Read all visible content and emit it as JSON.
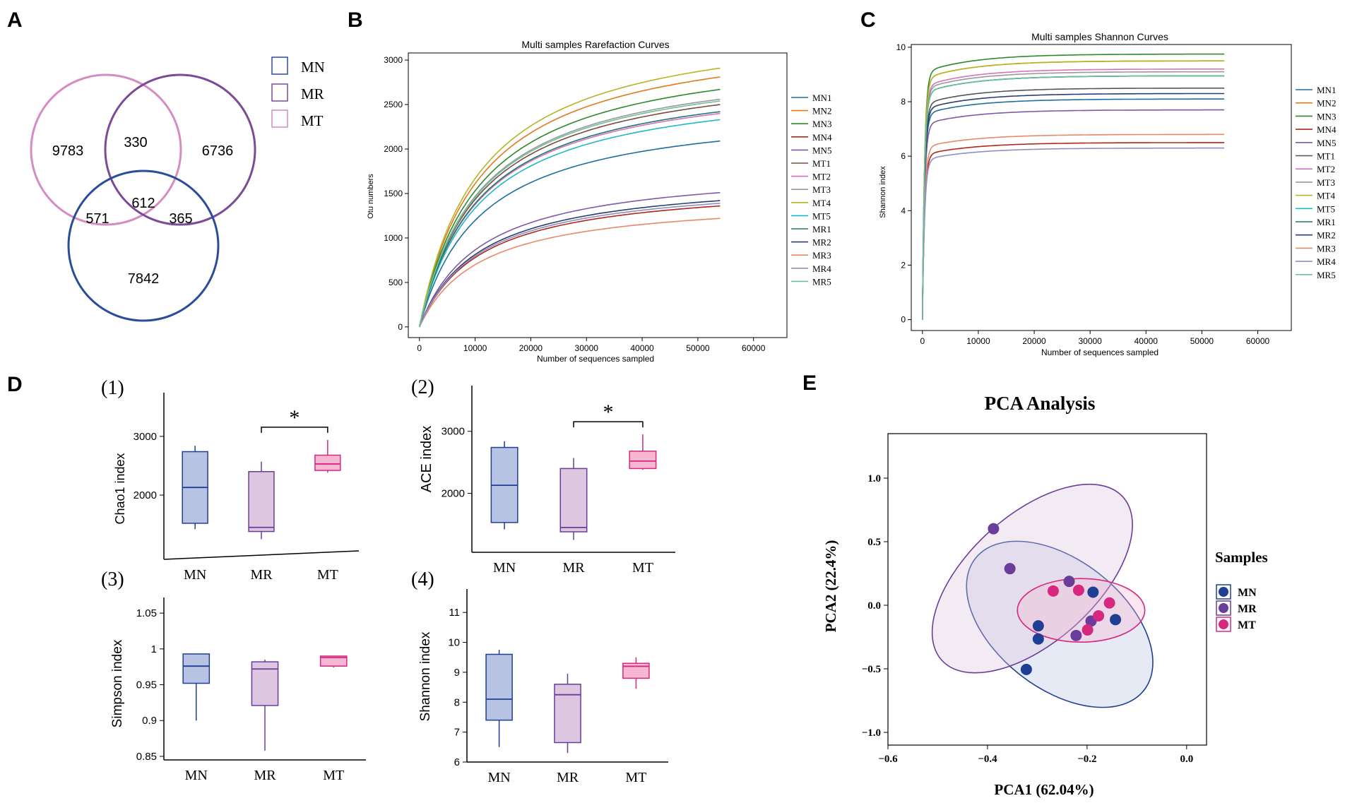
{
  "panel_letters": [
    "A",
    "B",
    "C",
    "D",
    "E"
  ],
  "colors": {
    "MN": "#1f3f94",
    "MR": "#6a3d9a",
    "MT": "#d6287e",
    "MN_fill": "#b8c3e3",
    "MR_fill": "#dcc6e0",
    "MT_fill": "#f7b7d2",
    "venn_MN": "#2b4c9b",
    "venn_MR": "#7b4a98",
    "venn_MT": "#d58cc0"
  },
  "chart_data": [
    {
      "panel": "A",
      "type": "venn",
      "sets": [
        "MN",
        "MR",
        "MT"
      ],
      "regions": {
        "MT_only": 9783,
        "MR_only": 6736,
        "MN_only": 7842,
        "MT_MR": 330,
        "MT_MN": 571,
        "MR_MN": 365,
        "all": 612
      },
      "legend": [
        "MN",
        "MR",
        "MT"
      ]
    },
    {
      "panel": "B",
      "type": "line",
      "title": "Multi samples Rarefaction Curves",
      "xlabel": "Number of sequences sampled",
      "ylabel": "Otu numbers",
      "xlim": [
        -2000,
        66000
      ],
      "ylim": [
        -120,
        3080
      ],
      "xticks": [
        0,
        10000,
        20000,
        30000,
        40000,
        50000,
        60000
      ],
      "yticks": [
        0,
        500,
        1000,
        1500,
        2000,
        2500,
        3000
      ],
      "x_max": 54000,
      "series": [
        {
          "name": "MN1",
          "color": "#1f6e9e",
          "final": 2090
        },
        {
          "name": "MN2",
          "color": "#e07a1f",
          "final": 2810
        },
        {
          "name": "MN3",
          "color": "#2c8a2c",
          "final": 2670
        },
        {
          "name": "MN4",
          "color": "#b3261e",
          "final": 1360
        },
        {
          "name": "MN5",
          "color": "#7e5aa6",
          "final": 1510
        },
        {
          "name": "MT1",
          "color": "#7a4a3c",
          "final": 2500
        },
        {
          "name": "MT2",
          "color": "#d671c2",
          "final": 2400
        },
        {
          "name": "MT3",
          "color": "#999999",
          "final": 2560
        },
        {
          "name": "MT4",
          "color": "#b5b524",
          "final": 2910
        },
        {
          "name": "MT5",
          "color": "#1fb8c8",
          "final": 2330
        },
        {
          "name": "MR1",
          "color": "#1e7a6a",
          "final": 2420
        },
        {
          "name": "MR2",
          "color": "#2b3f6e",
          "final": 1420
        },
        {
          "name": "MR3",
          "color": "#e8896a",
          "final": 1220
        },
        {
          "name": "MR4",
          "color": "#8f8fbf",
          "final": 1390
        },
        {
          "name": "MR5",
          "color": "#6fbf9f",
          "final": 2540
        }
      ]
    },
    {
      "panel": "C",
      "type": "line",
      "title": "Multi samples Shannon Curves",
      "xlabel": "Number of sequences sampled",
      "ylabel": "Shannon index",
      "xlim": [
        -2000,
        66000
      ],
      "ylim": [
        -0.4,
        10.1
      ],
      "xticks": [
        0,
        10000,
        20000,
        30000,
        40000,
        50000,
        60000
      ],
      "yticks": [
        0,
        2,
        4,
        6,
        8,
        10
      ],
      "x_max": 54000,
      "series": [
        {
          "name": "MN1",
          "color": "#1f6e9e",
          "final": 8.1
        },
        {
          "name": "MN2",
          "color": "#e07a1f",
          "final": 9.5
        },
        {
          "name": "MN3",
          "color": "#2c8a2c",
          "final": 9.75
        },
        {
          "name": "MN4",
          "color": "#b3261e",
          "final": 6.5
        },
        {
          "name": "MN5",
          "color": "#7e5aa6",
          "final": 7.7
        },
        {
          "name": "MT1",
          "color": "#555555",
          "final": 8.5
        },
        {
          "name": "MT2",
          "color": "#d671c2",
          "final": 9.2
        },
        {
          "name": "MT3",
          "color": "#999999",
          "final": 9.1
        },
        {
          "name": "MT4",
          "color": "#b5b524",
          "final": 9.5
        },
        {
          "name": "MT5",
          "color": "#1fb8c8",
          "final": 8.95
        },
        {
          "name": "MR1",
          "color": "#1e7a6a",
          "final": 8.95
        },
        {
          "name": "MR2",
          "color": "#2b3f6e",
          "final": 8.3
        },
        {
          "name": "MR3",
          "color": "#e8896a",
          "final": 6.8
        },
        {
          "name": "MR4",
          "color": "#8f8fbf",
          "final": 6.3
        },
        {
          "name": "MR5",
          "color": "#6fbf9f",
          "final": 8.95
        }
      ]
    },
    {
      "panel": "D1",
      "type": "box",
      "label": "(1)",
      "ylabel": "Chao1 index",
      "categories": [
        "MN",
        "MR",
        "MT"
      ],
      "ylim": [
        1050,
        3600
      ],
      "yticks": [
        2000,
        3000
      ],
      "boxes": [
        {
          "min": 1420,
          "q1": 1520,
          "median": 2130,
          "q3": 2740,
          "max": 2840
        },
        {
          "min": 1250,
          "q1": 1380,
          "median": 1450,
          "q3": 2400,
          "max": 2570
        },
        {
          "min": 2380,
          "q1": 2420,
          "median": 2530,
          "q3": 2680,
          "max": 2940
        }
      ],
      "significance": {
        "between": [
          "MR",
          "MT"
        ],
        "label": "*"
      }
    },
    {
      "panel": "D2",
      "type": "box",
      "label": "(2)",
      "ylabel": "ACE index",
      "categories": [
        "MN",
        "MR",
        "MT"
      ],
      "ylim": [
        1050,
        3600
      ],
      "yticks": [
        2000,
        3000
      ],
      "boxes": [
        {
          "min": 1420,
          "q1": 1530,
          "median": 2130,
          "q3": 2740,
          "max": 2840
        },
        {
          "min": 1250,
          "q1": 1380,
          "median": 1450,
          "q3": 2400,
          "max": 2570
        },
        {
          "min": 2380,
          "q1": 2400,
          "median": 2520,
          "q3": 2680,
          "max": 2950
        }
      ],
      "significance": {
        "between": [
          "MR",
          "MT"
        ],
        "label": "*"
      }
    },
    {
      "panel": "D3",
      "type": "box",
      "label": "(3)",
      "ylabel": "Simpson index",
      "categories": [
        "MN",
        "MR",
        "MT"
      ],
      "ylim": [
        0.845,
        1.06
      ],
      "yticks": [
        0.85,
        0.9,
        0.95,
        1,
        1.05
      ],
      "ytick_labels": [
        "0.85",
        "0.9",
        "0.95",
        "1",
        "1.05"
      ],
      "boxes": [
        {
          "min": 0.9,
          "q1": 0.952,
          "median": 0.976,
          "q3": 0.993,
          "max": 0.993
        },
        {
          "min": 0.858,
          "q1": 0.921,
          "median": 0.972,
          "q3": 0.982,
          "max": 0.985
        },
        {
          "min": 0.974,
          "q1": 0.976,
          "median": 0.988,
          "q3": 0.99,
          "max": 0.99
        }
      ]
    },
    {
      "panel": "D4",
      "type": "box",
      "label": "(4)",
      "ylabel": "Shannon index",
      "categories": [
        "MN",
        "MR",
        "MT"
      ],
      "ylim": [
        6,
        11.5
      ],
      "yticks": [
        6,
        7,
        8,
        9,
        10,
        11
      ],
      "boxes": [
        {
          "min": 6.5,
          "q1": 7.4,
          "median": 8.1,
          "q3": 9.6,
          "max": 9.75
        },
        {
          "min": 6.3,
          "q1": 6.65,
          "median": 8.25,
          "q3": 8.6,
          "max": 8.95
        },
        {
          "min": 8.45,
          "q1": 8.8,
          "median": 9.2,
          "q3": 9.3,
          "max": 9.5
        }
      ]
    },
    {
      "panel": "E",
      "type": "scatter",
      "title": "PCA Analysis",
      "xlabel": "PCA1 (62.04%)",
      "ylabel": "PCA2 (22.4%)",
      "xlim": [
        -0.6,
        0.04
      ],
      "ylim": [
        -1.1,
        1.35
      ],
      "xticks": [
        -0.6,
        -0.4,
        -0.2,
        0.0
      ],
      "xtick_labels": [
        "−0.6",
        "−0.4",
        "−0.2",
        "0.0"
      ],
      "yticks": [
        -1.0,
        -0.5,
        0.0,
        0.5,
        1.0
      ],
      "ytick_labels": [
        "−1.0",
        "−0.5",
        "0.0",
        "0.5",
        "1.0"
      ],
      "legend_title": "Samples",
      "groups": [
        {
          "name": "MN",
          "points": [
            [
              -0.322,
              -0.505
            ],
            [
              -0.298,
              -0.162
            ],
            [
              -0.298,
              -0.265
            ],
            [
              -0.188,
              0.103
            ],
            [
              -0.143,
              -0.113
            ]
          ]
        },
        {
          "name": "MR",
          "points": [
            [
              -0.388,
              0.602
            ],
            [
              -0.355,
              0.288
            ],
            [
              -0.236,
              0.188
            ],
            [
              -0.222,
              -0.238
            ],
            [
              -0.192,
              -0.124
            ]
          ]
        },
        {
          "name": "MT",
          "points": [
            [
              -0.268,
              0.112
            ],
            [
              -0.217,
              0.118
            ],
            [
              -0.199,
              -0.194
            ],
            [
              -0.177,
              -0.083
            ],
            [
              -0.155,
              0.018
            ]
          ]
        }
      ]
    }
  ]
}
